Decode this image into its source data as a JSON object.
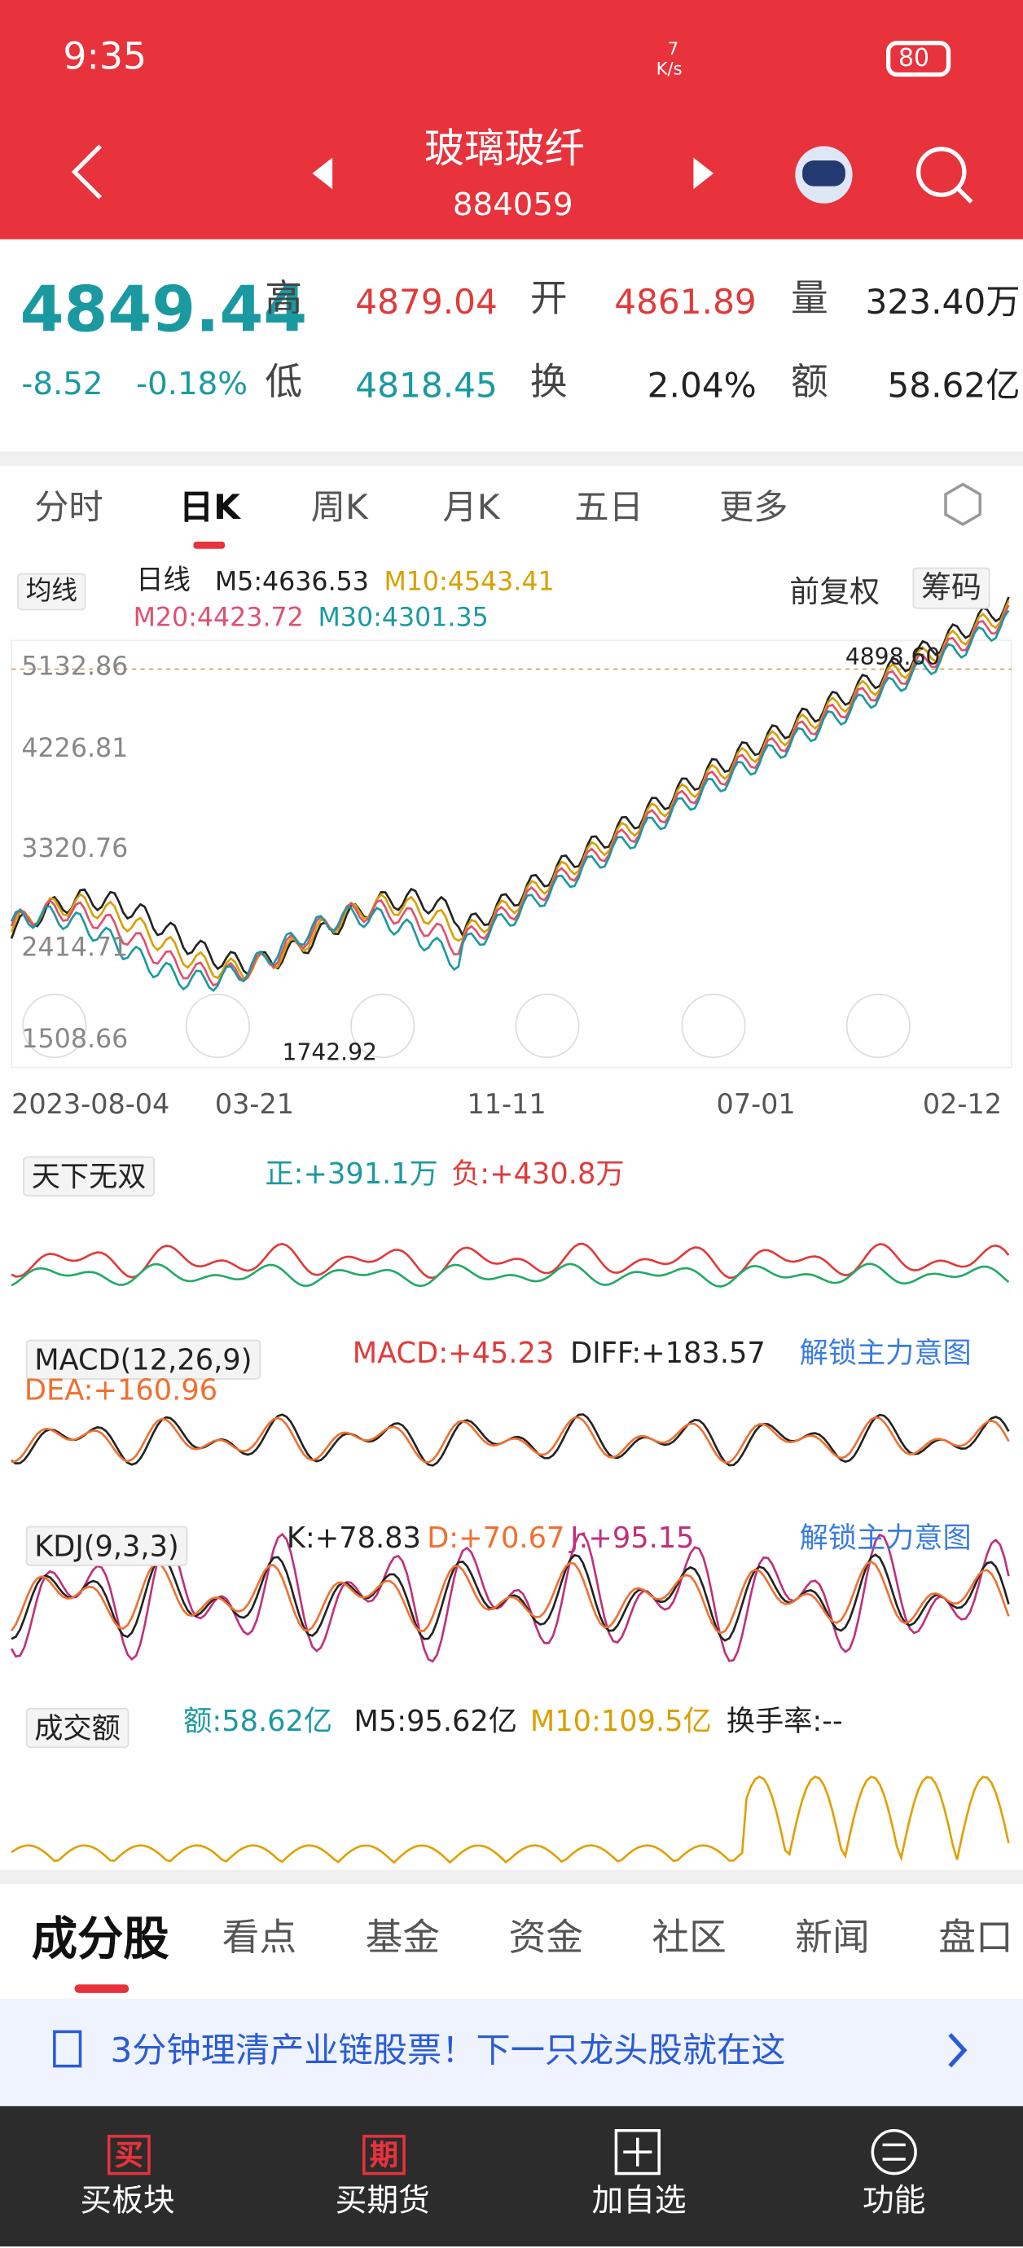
{
  "status_bar": {
    "time": "9:35",
    "speed": "7",
    "speed_unit": "K/s",
    "battery": "80"
  },
  "header": {
    "title": "玻璃玻纤",
    "code": "884059"
  },
  "quote": {
    "price": "4849.44",
    "change": "-8.52",
    "change_pct": "-0.18%",
    "fields": [
      {
        "label": "高",
        "value": "4879.04"
      },
      {
        "label": "开",
        "value": "4861.89"
      },
      {
        "label": "量",
        "value": "323.40万"
      },
      {
        "label": "低",
        "value": "4818.45"
      },
      {
        "label": "换",
        "value": "2.04%"
      },
      {
        "label": "额",
        "value": "58.62亿"
      }
    ]
  },
  "tabs": [
    "分时",
    "日K",
    "周K",
    "月K",
    "五日",
    "更多"
  ],
  "kline": {
    "selector": "均线",
    "mode": "日线",
    "ma": [
      "M5:4636.53",
      "M10:4543.41",
      "M20:4423.72",
      "M30:4301.35"
    ],
    "adjust": "前复权",
    "chip": "筹码",
    "y_labels": [
      "5132.86",
      "4226.81",
      "3320.76",
      "2414.71",
      "1508.66"
    ],
    "high_label": "4898.60",
    "low_label": "1742.92",
    "x_labels": [
      "2023-08-04",
      "03-21",
      "11-11",
      "07-01",
      "02-12"
    ]
  },
  "indicator": {
    "name": "天下无双",
    "positive": "正:+391.1万",
    "negative": "负:+430.8万"
  },
  "macd": {
    "name": "MACD(12,26,9)",
    "macd": "MACD:+45.23",
    "diff": "DIFF:+183.57",
    "dea": "DEA:+160.96",
    "unlock": "解锁主力意图"
  },
  "kdj": {
    "name": "KDJ(9,3,3)",
    "k": "K:+78.83",
    "d": "D:+70.67",
    "j": "J:+95.15",
    "unlock": "解锁主力意图"
  },
  "volume": {
    "name": "成交额",
    "amount": "额:58.62亿",
    "m5": "M5:95.62亿",
    "m10": "M10:109.5亿",
    "turnover": "换手率:--"
  },
  "bottom_tabs": [
    "成分股",
    "看点",
    "基金",
    "资金",
    "社区",
    "新闻",
    "盘口"
  ],
  "banner": {
    "text": "3分钟理清产业链股票！下一只龙头股就在这"
  },
  "nav": [
    {
      "icon": "买",
      "label": "买板块"
    },
    {
      "icon": "期",
      "label": "买期货"
    },
    {
      "label": "加自选"
    },
    {
      "label": "功能"
    }
  ]
}
